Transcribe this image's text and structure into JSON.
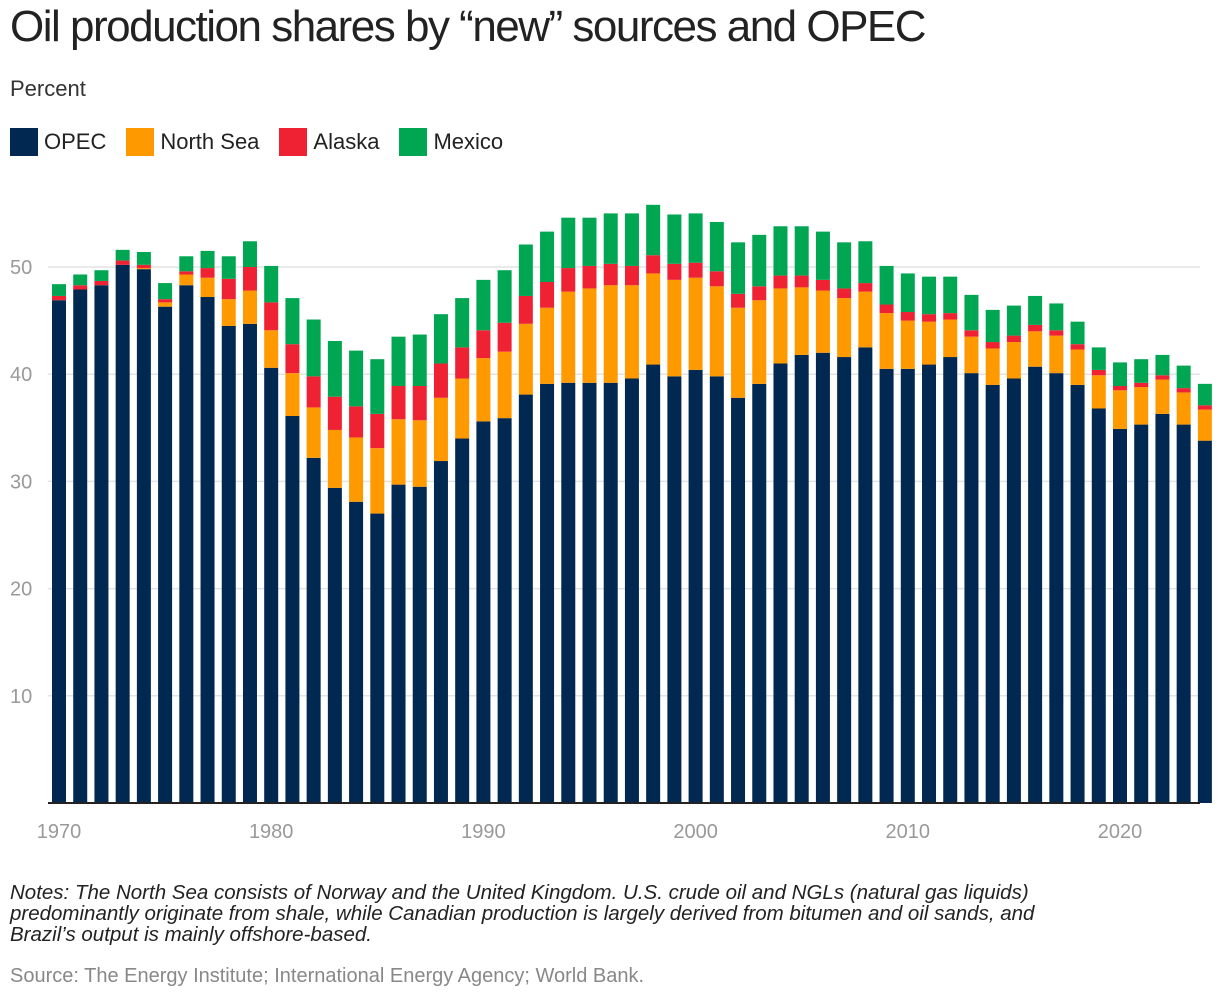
{
  "title": "Oil production shares by “new” sources and OPEC",
  "subtitle": "Percent",
  "legend": [
    {
      "label": "OPEC",
      "color": "#002850"
    },
    {
      "label": "North Sea",
      "color": "#FF9900"
    },
    {
      "label": "Alaska",
      "color": "#EE2233"
    },
    {
      "label": "Mexico",
      "color": "#00A651"
    }
  ],
  "notes": [
    "Notes: The North Sea consists of Norway and the United Kingdom. U.S. crude oil and NGLs (natural gas liquids)",
    "predominantly originate from shale, while Canadian production is largely derived from bitumen and oil sands, and",
    "Brazil’s output is mainly offshore-based."
  ],
  "source": "Source: The Energy Institute; International Energy Agency; World Bank.",
  "chart_data": {
    "type": "bar",
    "stacked": true,
    "title": "Oil production shares by “new” sources and OPEC",
    "ylabel": "Percent",
    "ylim": [
      0,
      56
    ],
    "yticks": [
      10,
      20,
      30,
      40,
      50
    ],
    "xticks": [
      "1970",
      "1980",
      "1990",
      "2000",
      "2010",
      "2020"
    ],
    "grid": true,
    "categories": [
      1970,
      1971,
      1972,
      1973,
      1974,
      1975,
      1976,
      1977,
      1978,
      1979,
      1980,
      1981,
      1982,
      1983,
      1984,
      1985,
      1986,
      1987,
      1988,
      1989,
      1990,
      1991,
      1992,
      1993,
      1994,
      1995,
      1996,
      1997,
      1998,
      1999,
      2000,
      2001,
      2002,
      2003,
      2004,
      2005,
      2006,
      2007,
      2008,
      2009,
      2010,
      2011,
      2012,
      2013,
      2014,
      2015,
      2016,
      2017,
      2018,
      2019,
      2020,
      2021,
      2022,
      2023,
      2024
    ],
    "series": [
      {
        "name": "OPEC",
        "color": "#002850",
        "values": [
          46.9,
          47.9,
          48.3,
          50.2,
          49.8,
          46.3,
          48.3,
          47.2,
          44.5,
          44.7,
          40.6,
          36.1,
          32.2,
          29.4,
          28.1,
          27.0,
          29.7,
          29.5,
          31.9,
          34.0,
          35.6,
          35.9,
          38.1,
          39.1,
          39.2,
          39.2,
          39.2,
          39.6,
          40.9,
          39.8,
          40.4,
          39.8,
          37.8,
          39.1,
          41.0,
          41.8,
          42.0,
          41.6,
          42.5,
          40.5,
          40.5,
          40.9,
          41.6,
          40.1,
          39.0,
          39.6,
          40.7,
          40.1,
          39.0,
          36.8,
          34.9,
          35.3,
          36.3,
          35.3,
          33.8
        ]
      },
      {
        "name": "North Sea",
        "color": "#FF9900",
        "values": [
          0.0,
          0.0,
          0.0,
          0.0,
          0.1,
          0.4,
          1.0,
          1.8,
          2.5,
          3.1,
          3.5,
          4.0,
          4.7,
          5.4,
          6.0,
          6.1,
          6.1,
          6.2,
          5.9,
          5.6,
          5.9,
          6.2,
          6.6,
          7.1,
          8.5,
          8.8,
          9.1,
          8.7,
          8.5,
          9.0,
          8.6,
          8.4,
          8.4,
          7.8,
          7.0,
          6.3,
          5.8,
          5.5,
          5.2,
          5.2,
          4.5,
          4.0,
          3.5,
          3.4,
          3.4,
          3.4,
          3.3,
          3.5,
          3.3,
          3.1,
          3.6,
          3.5,
          3.2,
          3.0,
          2.9
        ]
      },
      {
        "name": "Alaska",
        "color": "#EE2233",
        "values": [
          0.4,
          0.4,
          0.4,
          0.4,
          0.3,
          0.3,
          0.3,
          0.9,
          1.9,
          2.2,
          2.6,
          2.7,
          2.9,
          3.1,
          2.9,
          3.2,
          3.1,
          3.2,
          3.2,
          2.9,
          2.6,
          2.7,
          2.6,
          2.4,
          2.2,
          2.1,
          2.0,
          1.8,
          1.7,
          1.5,
          1.4,
          1.4,
          1.3,
          1.3,
          1.2,
          1.1,
          1.0,
          0.9,
          0.8,
          0.8,
          0.8,
          0.7,
          0.6,
          0.6,
          0.6,
          0.6,
          0.6,
          0.5,
          0.5,
          0.5,
          0.4,
          0.4,
          0.4,
          0.4,
          0.4
        ]
      },
      {
        "name": "Mexico",
        "color": "#00A651",
        "values": [
          1.1,
          1.0,
          1.0,
          1.0,
          1.2,
          1.5,
          1.4,
          1.6,
          2.1,
          2.4,
          3.4,
          4.3,
          5.3,
          5.2,
          5.2,
          5.1,
          4.6,
          4.8,
          4.6,
          4.6,
          4.7,
          4.9,
          4.8,
          4.7,
          4.7,
          4.5,
          4.7,
          4.9,
          4.7,
          4.6,
          4.6,
          4.6,
          4.8,
          4.8,
          4.6,
          4.6,
          4.5,
          4.3,
          3.9,
          3.6,
          3.6,
          3.5,
          3.4,
          3.3,
          3.0,
          2.8,
          2.7,
          2.5,
          2.1,
          2.1,
          2.2,
          2.2,
          1.9,
          2.1,
          2.0
        ]
      }
    ]
  }
}
